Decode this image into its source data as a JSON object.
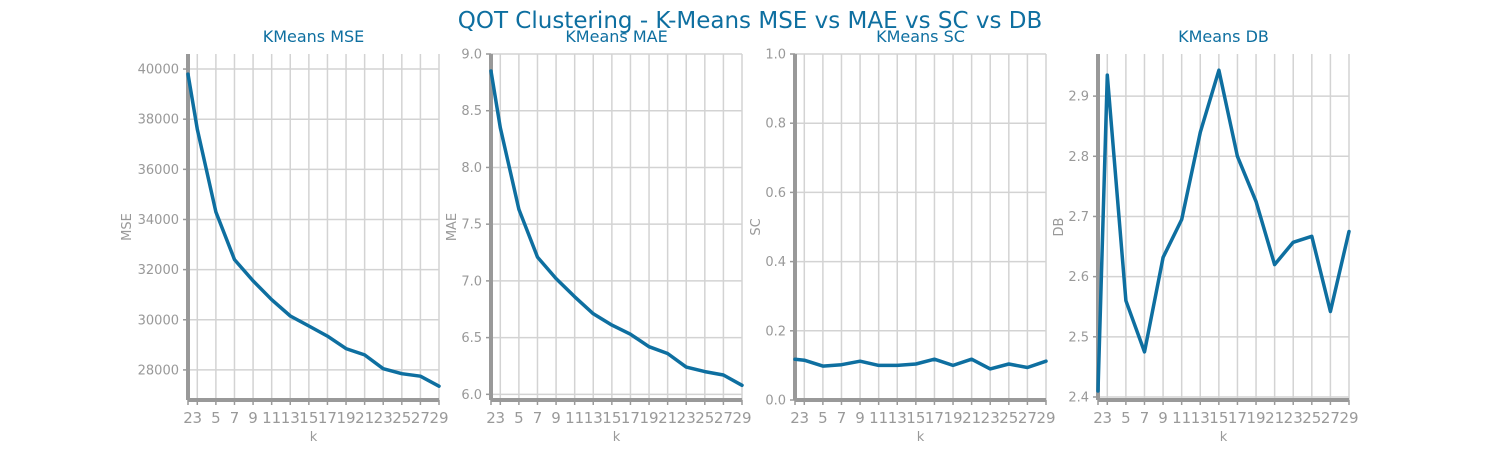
{
  "figure": {
    "title": "QOT Clustering - K-Means MSE vs MAE vs SC vs DB",
    "title_color": "#0e6fa0"
  },
  "style": {
    "line_color": "#0e6fa0",
    "grid_color": "#d3d3d3",
    "spine_color": "#999999",
    "tick_color": "#999999"
  },
  "chart_data": [
    {
      "type": "line",
      "title": "KMeans MSE",
      "xlabel": "k",
      "ylabel": "MSE",
      "x": [
        2,
        3,
        5,
        7,
        9,
        11,
        13,
        15,
        17,
        19,
        21,
        23,
        25,
        27,
        29
      ],
      "values": [
        39800,
        37600,
        34300,
        32400,
        31550,
        30800,
        30150,
        29750,
        29350,
        28850,
        28600,
        28050,
        27850,
        27750,
        27350
      ],
      "xticks": [
        "2",
        "3",
        "5",
        "7",
        "9",
        "11",
        "13",
        "15",
        "17",
        "19",
        "21",
        "23",
        "25",
        "27",
        "29"
      ],
      "yticks": [
        28000,
        30000,
        32000,
        34000,
        36000,
        38000,
        40000
      ],
      "xlim": [
        2,
        29
      ],
      "ylim": [
        26800,
        40600
      ],
      "grid": true
    },
    {
      "type": "line",
      "title": "KMeans MAE",
      "xlabel": "k",
      "ylabel": "MAE",
      "x": [
        2,
        3,
        5,
        7,
        9,
        11,
        13,
        15,
        17,
        19,
        21,
        23,
        25,
        27,
        29
      ],
      "values": [
        8.85,
        8.35,
        7.63,
        7.21,
        7.02,
        6.86,
        6.71,
        6.61,
        6.53,
        6.42,
        6.36,
        6.24,
        6.2,
        6.17,
        6.08
      ],
      "yticks": [
        "6.0",
        "6.5",
        "7.0",
        "7.5",
        "8.0",
        "8.5",
        "9.0"
      ],
      "xticks": [
        "2",
        "3",
        "5",
        "7",
        "9",
        "11",
        "13",
        "15",
        "17",
        "19",
        "21",
        "23",
        "25",
        "27",
        "29"
      ],
      "xlim": [
        2,
        29
      ],
      "ylim": [
        5.95,
        9.0
      ],
      "grid": true
    },
    {
      "type": "line",
      "title": "KMeans SC",
      "xlabel": "k",
      "ylabel": "SC",
      "x": [
        2,
        3,
        5,
        7,
        9,
        11,
        13,
        15,
        17,
        19,
        21,
        23,
        25,
        27,
        29
      ],
      "values": [
        0.118,
        0.115,
        0.098,
        0.102,
        0.112,
        0.1,
        0.1,
        0.104,
        0.118,
        0.1,
        0.118,
        0.09,
        0.104,
        0.094,
        0.112
      ],
      "yticks": [
        "0.0",
        "0.2",
        "0.4",
        "0.6",
        "0.8",
        "1.0"
      ],
      "xticks": [
        "2",
        "3",
        "5",
        "7",
        "9",
        "11",
        "13",
        "15",
        "17",
        "19",
        "21",
        "23",
        "25",
        "27",
        "29"
      ],
      "xlim": [
        2,
        29
      ],
      "ylim": [
        0.0,
        1.0
      ],
      "grid": true
    },
    {
      "type": "line",
      "title": "KMeans DB",
      "xlabel": "k",
      "ylabel": "DB",
      "x": [
        2,
        3,
        5,
        7,
        9,
        11,
        13,
        15,
        17,
        19,
        21,
        23,
        25,
        27,
        29
      ],
      "values": [
        2.41,
        2.935,
        2.56,
        2.475,
        2.632,
        2.695,
        2.84,
        2.943,
        2.8,
        2.725,
        2.62,
        2.657,
        2.667,
        2.542,
        2.675
      ],
      "yticks": [
        "2.4",
        "2.5",
        "2.6",
        "2.7",
        "2.8",
        "2.9"
      ],
      "xticks": [
        "2",
        "3",
        "5",
        "7",
        "9",
        "11",
        "13",
        "15",
        "17",
        "19",
        "21",
        "23",
        "25",
        "27",
        "29"
      ],
      "xlim": [
        2,
        29
      ],
      "ylim": [
        2.395,
        2.97
      ],
      "grid": true
    }
  ]
}
